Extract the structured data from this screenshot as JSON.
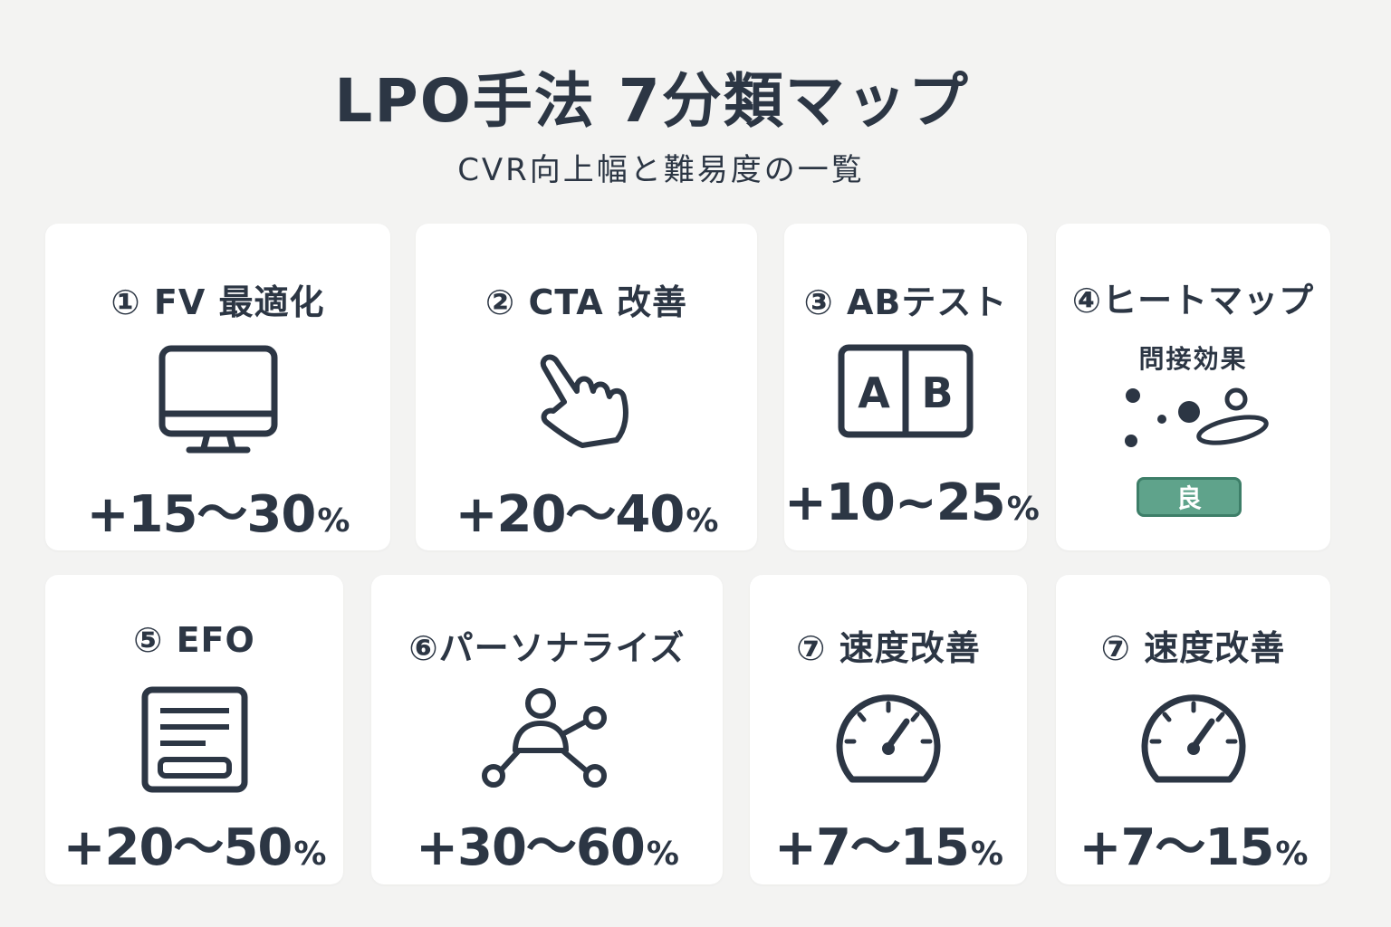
{
  "header": {
    "title": "LPO手法 7分類マップ",
    "subtitle": "CVR向上幅と難易度の一覧"
  },
  "cards": [
    {
      "title": "① FV 最適化",
      "icon": "monitor-icon",
      "value": "+15～30",
      "unit": "%"
    },
    {
      "title": "② CTA 改善",
      "icon": "pointing-hand-icon",
      "value": "+20～40",
      "unit": "%"
    },
    {
      "title": "③ ABテスト",
      "icon": "ab-split-icon",
      "value": "+10~25",
      "unit": "%"
    },
    {
      "title": "④ヒートマップ",
      "subtitle": "問接効果",
      "icon": "heatmap-dots-icon",
      "badge": "良"
    },
    {
      "title": "⑤ EFO",
      "icon": "form-icon",
      "value": "+20～50",
      "unit": "%"
    },
    {
      "title": "⑥パーソナライズ",
      "icon": "user-network-icon",
      "value": "+30～60",
      "unit": "%"
    },
    {
      "title": "⑦ 速度改善",
      "icon": "speedometer-icon",
      "value": "+7～15",
      "unit": "%"
    },
    {
      "title": "⑦ 速度改善",
      "icon": "speedometer-icon",
      "value": "+7～15",
      "unit": "%"
    }
  ],
  "colors": {
    "background": "#f3f3f2",
    "card": "#ffffff",
    "text": "#2c3644",
    "badge": "#5fa38b"
  }
}
